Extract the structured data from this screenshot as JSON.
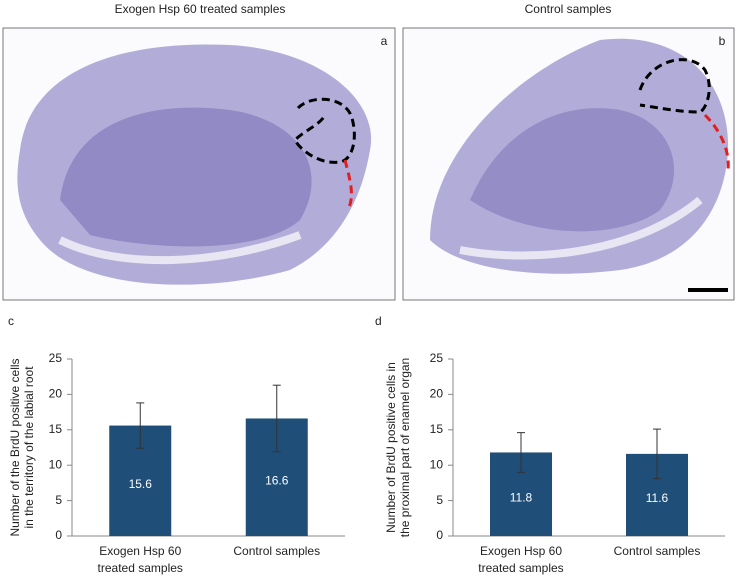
{
  "panels": {
    "titles": [
      "Exogen Hsp 60 treated samples",
      "Control samples"
    ],
    "letters": [
      "a",
      "b",
      "c",
      "d"
    ]
  },
  "chart_data": [
    {
      "type": "bar",
      "y_label": [
        "Number of the BrdU positive cells",
        "in the territory of the labial root"
      ],
      "categories": [
        [
          "Exogen Hsp 60",
          "treated samples"
        ],
        [
          "Control samples"
        ]
      ],
      "values": [
        15.6,
        16.6
      ],
      "errors": [
        3.2,
        4.7
      ],
      "color": "#1f4e79",
      "ylim": [
        0,
        25
      ],
      "yticks": [
        0,
        5,
        10,
        15,
        20,
        25
      ]
    },
    {
      "type": "bar",
      "y_label": [
        "Number of BrdU positive cells in",
        "the proximal part of enamel organ"
      ],
      "categories": [
        [
          "Exogen Hsp 60",
          "treated samples"
        ],
        [
          "Control samples"
        ]
      ],
      "values": [
        11.8,
        11.6
      ],
      "errors": [
        2.8,
        3.5
      ],
      "color": "#1f4e79",
      "ylim": [
        0,
        25
      ],
      "yticks": [
        0,
        5,
        10,
        15,
        20,
        25
      ]
    }
  ]
}
